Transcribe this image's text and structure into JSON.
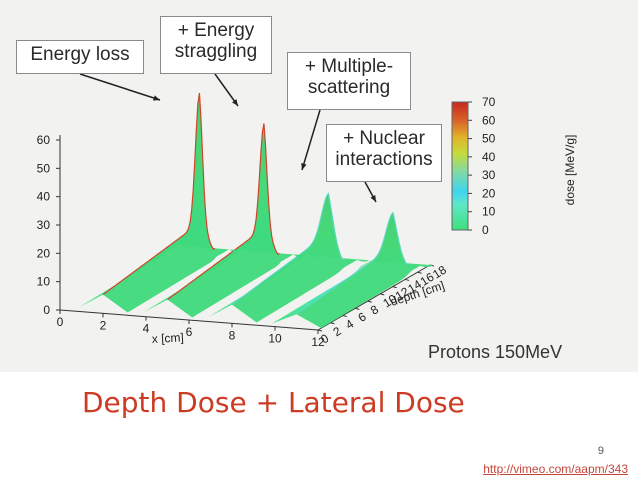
{
  "slide": {
    "title": "Depth Dose + Lateral Dose",
    "number": "9",
    "source_link": "http://vimeo.com/aapm/343"
  },
  "figure": {
    "subtitle": "Protons 150MeV",
    "callouts": [
      {
        "text": "Energy loss"
      },
      {
        "text": "+ Energy\nstraggling"
      },
      {
        "text": "+ Multiple-\nscattering"
      },
      {
        "text": "+ Nuclear\ninteractions"
      }
    ]
  },
  "chart_data": {
    "type": "area",
    "title": "",
    "subtitle": "Protons 150MeV",
    "xlabel": "x [cm]",
    "ylabel": "depth [cm]",
    "zlabel": "dose [MeV/g]",
    "xlim": [
      0,
      12
    ],
    "ylim": [
      0,
      18
    ],
    "zlim": [
      0,
      60
    ],
    "x_ticks": [
      "0",
      "2",
      "4",
      "6",
      "8",
      "10",
      "12"
    ],
    "depth_ticks": [
      "0",
      "2",
      "4",
      "6",
      "8",
      "10",
      "12",
      "14",
      "16",
      "18"
    ],
    "z_ticks": [
      "0",
      "10",
      "20",
      "30",
      "40",
      "50",
      "60"
    ],
    "colorbar": {
      "label": "dose [MeV/g]",
      "ticks": [
        "0",
        "10",
        "20",
        "30",
        "40",
        "50",
        "60",
        "70"
      ],
      "range": [
        0,
        70
      ],
      "colors": [
        "#3ee07a",
        "#5fe6c8",
        "#3fd4ee",
        "#7fd9a8",
        "#c5dc3a",
        "#e0b52a",
        "#d9662a",
        "#c6281c"
      ]
    },
    "series": [
      {
        "name": "Energy loss",
        "x_center": 2,
        "plateau_dose": 12,
        "peak_dose": 58,
        "peak_depth_cm": 15.5
      },
      {
        "name": "+ Energy straggling",
        "x_center": 5,
        "plateau_dose": 12,
        "peak_dose": 49,
        "peak_depth_cm": 15.5
      },
      {
        "name": "+ Multiple-scattering",
        "x_center": 8,
        "plateau_dose": 12,
        "peak_dose": 26,
        "peak_depth_cm": 15.5
      },
      {
        "name": "+ Nuclear interactions",
        "x_center": 11,
        "plateau_dose": 9,
        "peak_dose": 21,
        "peak_depth_cm": 15.5
      }
    ]
  }
}
